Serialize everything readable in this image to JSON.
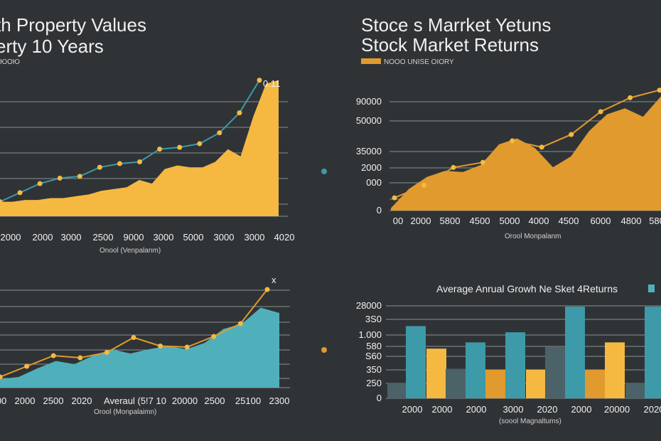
{
  "colors": {
    "background": "#2f3336",
    "gold": "#f5b942",
    "orange": "#e09a2e",
    "teal": "#3d9aa8",
    "tealLight": "#4fb0bc",
    "gray": "#4a6268",
    "grid": "#8a8f93"
  },
  "chart_data": [
    {
      "id": "property",
      "type": "area",
      "title": [
        "th Property Values",
        "erty 10 Years"
      ],
      "legend_note": "ЮОЮ",
      "xlabel": "Onool (Venpalanm)",
      "categories": [
        "2000",
        "2000",
        "3000",
        "2500",
        "9000",
        "3000",
        "5000",
        "3000",
        "3000",
        "4020"
      ],
      "area_values": [
        8,
        8,
        9,
        9,
        10,
        10,
        11,
        12,
        14,
        15,
        16,
        20,
        18,
        26,
        28,
        27,
        27,
        30,
        37,
        33,
        55,
        73,
        75
      ],
      "line_values": [
        8,
        13,
        18,
        21,
        22,
        27,
        29,
        30,
        37,
        38,
        40,
        46,
        57,
        75
      ],
      "peak_label": "0.11",
      "ylim": [
        0,
        80
      ]
    },
    {
      "id": "stock",
      "type": "area",
      "title": [
        "Stoce s Marrket Yetuns",
        "Stock Market Returns"
      ],
      "legend_label": "NOOO UNISE OIORY",
      "xlabel": "Orool Monpalanm",
      "yticks": [
        "90000",
        "50000",
        "35000",
        "2000",
        "000",
        "0"
      ],
      "categories": [
        "00",
        "2000",
        "5800",
        "4500",
        "5000",
        "4000",
        "4500",
        "6000",
        "4800",
        "580"
      ],
      "area_values": [
        2,
        18,
        28,
        33,
        32,
        38,
        55,
        60,
        52,
        36,
        45,
        66,
        80,
        85,
        78,
        95
      ],
      "line_values": [
        10,
        20,
        34,
        38,
        55,
        50,
        60,
        78,
        89,
        95
      ],
      "ylim": [
        0,
        110
      ]
    },
    {
      "id": "teal",
      "type": "area",
      "title": [],
      "peak_label": "x",
      "xlabel": "Orool (Monpalaimn)",
      "categories": [
        "00",
        "2000",
        "2500",
        "2020",
        "Averaul  (5!7 10",
        "20000",
        "2500",
        "25100",
        "2300"
      ],
      "area_values": [
        8,
        10,
        18,
        25,
        22,
        30,
        36,
        32,
        36,
        39,
        36,
        42,
        55,
        60,
        75,
        70
      ],
      "line_values": [
        10,
        20,
        30,
        28,
        33,
        47,
        39,
        38,
        48,
        60,
        92
      ],
      "ylim": [
        0,
        100
      ]
    },
    {
      "id": "growth",
      "type": "bar",
      "title": "Average Anrual Growh Ne Sket 4Returns",
      "xlabel": "(soool Magnaltums)",
      "yticks": [
        "28000",
        "3S0",
        "1.000",
        "580",
        "S60",
        "350",
        "250",
        "0"
      ],
      "categories": [
        "2000",
        "2000",
        "2000",
        "3000",
        "2020",
        "2000",
        "20000",
        "2020"
      ],
      "bars": [
        {
          "color": "gray",
          "value": 20
        },
        {
          "color": "teal",
          "value": 93
        },
        {
          "color": "gold",
          "value": 64
        },
        {
          "color": "gray",
          "value": 38
        },
        {
          "color": "teal",
          "value": 72
        },
        {
          "color": "orange",
          "value": 37
        },
        {
          "color": "teal",
          "value": 85
        },
        {
          "color": "gold",
          "value": 37
        },
        {
          "color": "gray",
          "value": 66
        },
        {
          "color": "teal",
          "value": 118
        },
        {
          "color": "orange",
          "value": 37
        },
        {
          "color": "gold",
          "value": 72
        },
        {
          "color": "gray",
          "value": 20
        },
        {
          "color": "teal",
          "value": 118
        }
      ],
      "ylim": [
        0,
        130
      ]
    }
  ]
}
